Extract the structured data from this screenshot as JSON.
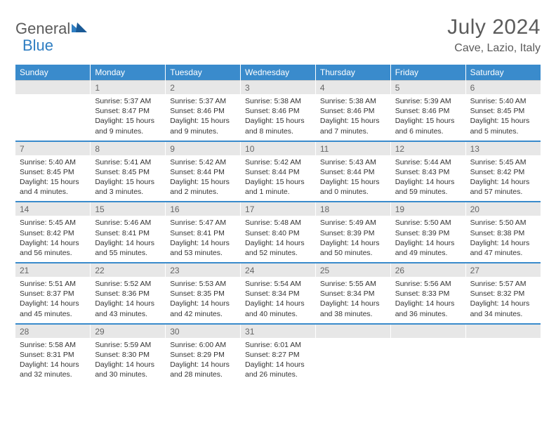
{
  "logo": {
    "text1": "General",
    "text2": "Blue"
  },
  "title": "July 2024",
  "location": "Cave, Lazio, Italy",
  "colors": {
    "header_bar": "#3a8bcc",
    "header_text": "#ffffff",
    "daynum_bg": "#e7e7e7",
    "daynum_text": "#666666",
    "body_text": "#333333",
    "divider": "#3a8bcc",
    "logo_gray": "#5b5b5b",
    "logo_blue": "#2f7ec2"
  },
  "dow": [
    "Sunday",
    "Monday",
    "Tuesday",
    "Wednesday",
    "Thursday",
    "Friday",
    "Saturday"
  ],
  "weeks": [
    {
      "nums": [
        "",
        "1",
        "2",
        "3",
        "4",
        "5",
        "6"
      ],
      "cells": [
        {},
        {
          "sr": "Sunrise: 5:37 AM",
          "ss": "Sunset: 8:47 PM",
          "dl1": "Daylight: 15 hours",
          "dl2": "and 9 minutes."
        },
        {
          "sr": "Sunrise: 5:37 AM",
          "ss": "Sunset: 8:46 PM",
          "dl1": "Daylight: 15 hours",
          "dl2": "and 9 minutes."
        },
        {
          "sr": "Sunrise: 5:38 AM",
          "ss": "Sunset: 8:46 PM",
          "dl1": "Daylight: 15 hours",
          "dl2": "and 8 minutes."
        },
        {
          "sr": "Sunrise: 5:38 AM",
          "ss": "Sunset: 8:46 PM",
          "dl1": "Daylight: 15 hours",
          "dl2": "and 7 minutes."
        },
        {
          "sr": "Sunrise: 5:39 AM",
          "ss": "Sunset: 8:46 PM",
          "dl1": "Daylight: 15 hours",
          "dl2": "and 6 minutes."
        },
        {
          "sr": "Sunrise: 5:40 AM",
          "ss": "Sunset: 8:45 PM",
          "dl1": "Daylight: 15 hours",
          "dl2": "and 5 minutes."
        }
      ]
    },
    {
      "nums": [
        "7",
        "8",
        "9",
        "10",
        "11",
        "12",
        "13"
      ],
      "cells": [
        {
          "sr": "Sunrise: 5:40 AM",
          "ss": "Sunset: 8:45 PM",
          "dl1": "Daylight: 15 hours",
          "dl2": "and 4 minutes."
        },
        {
          "sr": "Sunrise: 5:41 AM",
          "ss": "Sunset: 8:45 PM",
          "dl1": "Daylight: 15 hours",
          "dl2": "and 3 minutes."
        },
        {
          "sr": "Sunrise: 5:42 AM",
          "ss": "Sunset: 8:44 PM",
          "dl1": "Daylight: 15 hours",
          "dl2": "and 2 minutes."
        },
        {
          "sr": "Sunrise: 5:42 AM",
          "ss": "Sunset: 8:44 PM",
          "dl1": "Daylight: 15 hours",
          "dl2": "and 1 minute."
        },
        {
          "sr": "Sunrise: 5:43 AM",
          "ss": "Sunset: 8:44 PM",
          "dl1": "Daylight: 15 hours",
          "dl2": "and 0 minutes."
        },
        {
          "sr": "Sunrise: 5:44 AM",
          "ss": "Sunset: 8:43 PM",
          "dl1": "Daylight: 14 hours",
          "dl2": "and 59 minutes."
        },
        {
          "sr": "Sunrise: 5:45 AM",
          "ss": "Sunset: 8:42 PM",
          "dl1": "Daylight: 14 hours",
          "dl2": "and 57 minutes."
        }
      ]
    },
    {
      "nums": [
        "14",
        "15",
        "16",
        "17",
        "18",
        "19",
        "20"
      ],
      "cells": [
        {
          "sr": "Sunrise: 5:45 AM",
          "ss": "Sunset: 8:42 PM",
          "dl1": "Daylight: 14 hours",
          "dl2": "and 56 minutes."
        },
        {
          "sr": "Sunrise: 5:46 AM",
          "ss": "Sunset: 8:41 PM",
          "dl1": "Daylight: 14 hours",
          "dl2": "and 55 minutes."
        },
        {
          "sr": "Sunrise: 5:47 AM",
          "ss": "Sunset: 8:41 PM",
          "dl1": "Daylight: 14 hours",
          "dl2": "and 53 minutes."
        },
        {
          "sr": "Sunrise: 5:48 AM",
          "ss": "Sunset: 8:40 PM",
          "dl1": "Daylight: 14 hours",
          "dl2": "and 52 minutes."
        },
        {
          "sr": "Sunrise: 5:49 AM",
          "ss": "Sunset: 8:39 PM",
          "dl1": "Daylight: 14 hours",
          "dl2": "and 50 minutes."
        },
        {
          "sr": "Sunrise: 5:50 AM",
          "ss": "Sunset: 8:39 PM",
          "dl1": "Daylight: 14 hours",
          "dl2": "and 49 minutes."
        },
        {
          "sr": "Sunrise: 5:50 AM",
          "ss": "Sunset: 8:38 PM",
          "dl1": "Daylight: 14 hours",
          "dl2": "and 47 minutes."
        }
      ]
    },
    {
      "nums": [
        "21",
        "22",
        "23",
        "24",
        "25",
        "26",
        "27"
      ],
      "cells": [
        {
          "sr": "Sunrise: 5:51 AM",
          "ss": "Sunset: 8:37 PM",
          "dl1": "Daylight: 14 hours",
          "dl2": "and 45 minutes."
        },
        {
          "sr": "Sunrise: 5:52 AM",
          "ss": "Sunset: 8:36 PM",
          "dl1": "Daylight: 14 hours",
          "dl2": "and 43 minutes."
        },
        {
          "sr": "Sunrise: 5:53 AM",
          "ss": "Sunset: 8:35 PM",
          "dl1": "Daylight: 14 hours",
          "dl2": "and 42 minutes."
        },
        {
          "sr": "Sunrise: 5:54 AM",
          "ss": "Sunset: 8:34 PM",
          "dl1": "Daylight: 14 hours",
          "dl2": "and 40 minutes."
        },
        {
          "sr": "Sunrise: 5:55 AM",
          "ss": "Sunset: 8:34 PM",
          "dl1": "Daylight: 14 hours",
          "dl2": "and 38 minutes."
        },
        {
          "sr": "Sunrise: 5:56 AM",
          "ss": "Sunset: 8:33 PM",
          "dl1": "Daylight: 14 hours",
          "dl2": "and 36 minutes."
        },
        {
          "sr": "Sunrise: 5:57 AM",
          "ss": "Sunset: 8:32 PM",
          "dl1": "Daylight: 14 hours",
          "dl2": "and 34 minutes."
        }
      ]
    },
    {
      "nums": [
        "28",
        "29",
        "30",
        "31",
        "",
        "",
        ""
      ],
      "cells": [
        {
          "sr": "Sunrise: 5:58 AM",
          "ss": "Sunset: 8:31 PM",
          "dl1": "Daylight: 14 hours",
          "dl2": "and 32 minutes."
        },
        {
          "sr": "Sunrise: 5:59 AM",
          "ss": "Sunset: 8:30 PM",
          "dl1": "Daylight: 14 hours",
          "dl2": "and 30 minutes."
        },
        {
          "sr": "Sunrise: 6:00 AM",
          "ss": "Sunset: 8:29 PM",
          "dl1": "Daylight: 14 hours",
          "dl2": "and 28 minutes."
        },
        {
          "sr": "Sunrise: 6:01 AM",
          "ss": "Sunset: 8:27 PM",
          "dl1": "Daylight: 14 hours",
          "dl2": "and 26 minutes."
        },
        {},
        {},
        {}
      ]
    }
  ]
}
